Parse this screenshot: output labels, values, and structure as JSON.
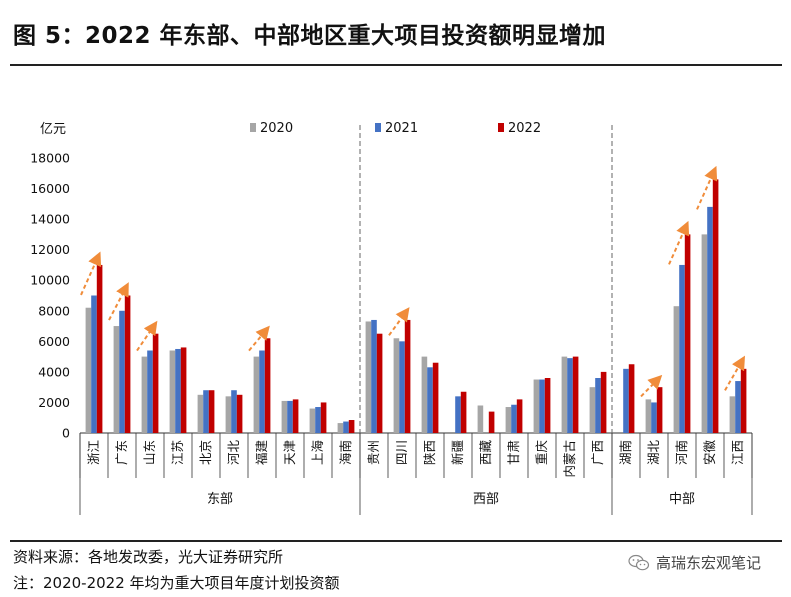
{
  "title": "图 5：2022 年东部、中部地区重大项目投资额明显增加",
  "source": "资料来源：各地发改委，光大证券研究所",
  "note": "注：2020-2022 年均为重大项目年度计划投资额",
  "watermark": "高瑞东宏观笔记",
  "chart_data": {
    "type": "bar",
    "ylabel": "亿元",
    "ylim": [
      0,
      18000
    ],
    "yticks": [
      0,
      2000,
      4000,
      6000,
      8000,
      10000,
      12000,
      14000,
      16000,
      18000
    ],
    "categories": [
      "浙江",
      "广东",
      "山东",
      "江苏",
      "北京",
      "河北",
      "福建",
      "天津",
      "上海",
      "海南",
      "贵州",
      "四川",
      "陕西",
      "新疆",
      "西藏",
      "甘肃",
      "重庆",
      "内蒙古",
      "广西",
      "湖南",
      "湖北",
      "河南",
      "安徽",
      "江西"
    ],
    "groups": [
      {
        "name": "东部",
        "count": 10
      },
      {
        "name": "西部",
        "count": 9
      },
      {
        "name": "中部",
        "count": 5
      }
    ],
    "series": [
      {
        "name": "2020",
        "color": "#a6a6a6",
        "values": [
          8200,
          7000,
          5000,
          5400,
          2500,
          2400,
          5000,
          2100,
          1600,
          650,
          7300,
          6200,
          5000,
          null,
          1800,
          1700,
          3500,
          5000,
          3000,
          null,
          2200,
          8300,
          13000,
          2400
        ]
      },
      {
        "name": "2021",
        "color": "#4472c4",
        "values": [
          9000,
          8000,
          5400,
          5500,
          2800,
          2800,
          5400,
          2100,
          1700,
          750,
          7400,
          6000,
          4300,
          2400,
          null,
          1850,
          3500,
          4900,
          3600,
          4200,
          2000,
          11000,
          14800,
          3400
        ]
      },
      {
        "name": "2022",
        "color": "#c00000",
        "values": [
          11000,
          9000,
          6500,
          5600,
          2800,
          2500,
          6200,
          2200,
          2000,
          850,
          6500,
          7400,
          4600,
          2700,
          1400,
          2200,
          3600,
          5000,
          4000,
          4500,
          3000,
          13000,
          16600,
          4200
        ]
      }
    ],
    "increase_arrows": [
      "浙江",
      "广东",
      "山东",
      "福建",
      "四川",
      "湖北",
      "河南",
      "安徽",
      "江西"
    ],
    "legend_position": "top",
    "grid": false
  }
}
